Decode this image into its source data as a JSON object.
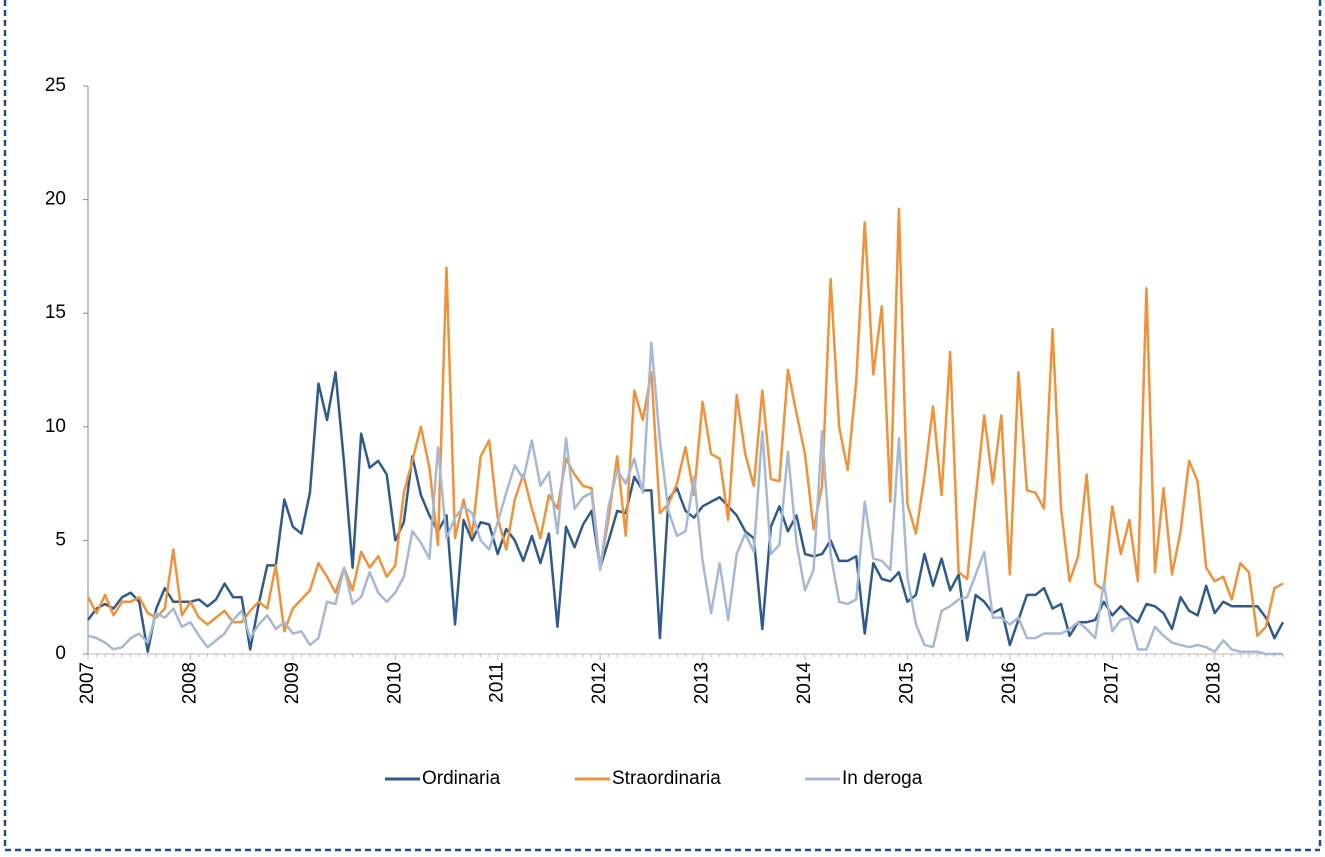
{
  "chart_data": {
    "type": "line",
    "categories": [
      "2007",
      null,
      null,
      null,
      null,
      null,
      null,
      null,
      null,
      null,
      null,
      null,
      "2008",
      null,
      null,
      null,
      null,
      null,
      null,
      null,
      null,
      null,
      null,
      null,
      "2009",
      null,
      null,
      null,
      null,
      null,
      null,
      null,
      null,
      null,
      null,
      null,
      "2010",
      null,
      null,
      null,
      null,
      null,
      null,
      null,
      null,
      null,
      null,
      null,
      "2011",
      null,
      null,
      null,
      null,
      null,
      null,
      null,
      null,
      null,
      null,
      null,
      "2012",
      null,
      null,
      null,
      null,
      null,
      null,
      null,
      null,
      null,
      null,
      null,
      "2013",
      null,
      null,
      null,
      null,
      null,
      null,
      null,
      null,
      null,
      null,
      null,
      "2014",
      null,
      null,
      null,
      null,
      null,
      null,
      null,
      null,
      null,
      null,
      null,
      "2015",
      null,
      null,
      null,
      null,
      null,
      null,
      null,
      null,
      null,
      null,
      null,
      "2016",
      null,
      null,
      null,
      null,
      null,
      null,
      null,
      null,
      null,
      null,
      null,
      "2017",
      null,
      null,
      null,
      null,
      null,
      null,
      null,
      null,
      null,
      null,
      null,
      "2018",
      null,
      null,
      null,
      null,
      null,
      null,
      null,
      null
    ],
    "series": [
      {
        "name": "Ordinaria",
        "color": "#2e5b8c",
        "values": [
          1.5,
          2.0,
          2.2,
          2.0,
          2.5,
          2.7,
          2.3,
          0.1,
          2.0,
          2.9,
          2.3,
          2.3,
          2.3,
          2.4,
          2.1,
          2.4,
          3.1,
          2.5,
          2.5,
          0.2,
          2.2,
          3.9,
          3.9,
          6.8,
          5.6,
          5.3,
          7.1,
          11.9,
          10.3,
          12.4,
          8.4,
          3.8,
          9.7,
          8.2,
          8.5,
          7.9,
          5.0,
          5.8,
          8.7,
          7.0,
          6.1,
          5.4,
          6.1,
          1.3,
          5.9,
          5.0,
          5.8,
          5.7,
          4.4,
          5.5,
          5.0,
          4.1,
          5.2,
          4.0,
          5.3,
          1.2,
          5.6,
          4.7,
          5.7,
          6.3,
          3.8,
          5.0,
          6.3,
          6.2,
          7.8,
          7.2,
          7.2,
          0.7,
          6.8,
          7.3,
          6.3,
          6.0,
          6.5,
          6.7,
          6.9,
          6.5,
          6.1,
          5.4,
          5.1,
          1.1,
          5.6,
          6.5,
          5.4,
          6.1,
          4.4,
          4.3,
          4.4,
          5.0,
          4.1,
          4.1,
          4.3,
          0.9,
          4.0,
          3.3,
          3.2,
          3.6,
          2.3,
          2.6,
          4.4,
          3.0,
          4.2,
          2.8,
          3.5,
          0.6,
          2.6,
          2.3,
          1.8,
          2.0,
          0.4,
          1.5,
          2.6,
          2.6,
          2.9,
          2.0,
          2.2,
          0.8,
          1.4,
          1.4,
          1.5,
          2.3,
          1.7,
          2.1,
          1.7,
          1.4,
          2.2,
          2.1,
          1.8,
          1.1,
          2.5,
          1.9,
          1.7,
          3.0,
          1.8,
          2.3,
          2.1,
          2.1,
          2.1,
          2.1,
          1.6,
          0.7,
          1.4
        ]
      },
      {
        "name": "Straordinaria",
        "color": "#f0923a",
        "values": [
          2.5,
          1.8,
          2.6,
          1.7,
          2.3,
          2.3,
          2.5,
          1.8,
          1.6,
          2.0,
          4.6,
          1.7,
          2.3,
          1.6,
          1.3,
          1.6,
          1.9,
          1.4,
          1.4,
          1.9,
          2.3,
          2.0,
          3.9,
          1.0,
          2.0,
          2.4,
          2.8,
          4.0,
          3.4,
          2.7,
          3.8,
          2.8,
          4.5,
          3.8,
          4.3,
          3.4,
          3.9,
          7.1,
          8.5,
          10.0,
          8.2,
          4.8,
          17.0,
          5.1,
          6.8,
          5.2,
          8.7,
          9.4,
          6.0,
          4.6,
          6.8,
          7.9,
          6.4,
          5.1,
          7.0,
          6.4,
          8.6,
          7.9,
          7.4,
          7.3,
          3.8,
          6.0,
          8.7,
          5.2,
          11.6,
          10.3,
          12.4,
          6.2,
          6.6,
          7.5,
          9.1,
          7.0,
          11.1,
          8.8,
          8.6,
          5.9,
          11.4,
          8.8,
          7.4,
          11.6,
          7.7,
          7.6,
          12.5,
          10.6,
          8.8,
          5.5,
          7.4,
          16.5,
          10.0,
          8.1,
          12.0,
          19.0,
          12.3,
          15.3,
          6.7,
          19.6,
          6.6,
          5.3,
          7.8,
          10.9,
          7.0,
          13.3,
          3.6,
          3.3,
          6.9,
          10.5,
          7.5,
          10.5,
          3.5,
          12.4,
          7.2,
          7.1,
          6.4,
          14.3,
          6.4,
          3.2,
          4.3,
          7.9,
          3.1,
          2.8,
          6.5,
          4.4,
          5.9,
          3.2,
          16.1,
          3.6,
          7.3,
          3.5,
          5.4,
          8.5,
          7.6,
          3.8,
          3.2,
          3.4,
          2.4,
          4.0,
          3.6,
          0.8,
          1.2,
          2.9,
          3.1
        ]
      },
      {
        "name": "In deroga",
        "color": "#a5b8d4",
        "values": [
          0.8,
          0.7,
          0.5,
          0.2,
          0.3,
          0.7,
          0.9,
          0.5,
          1.8,
          1.6,
          2.0,
          1.2,
          1.4,
          0.8,
          0.3,
          0.6,
          0.9,
          1.5,
          1.9,
          0.7,
          1.3,
          1.7,
          1.1,
          1.4,
          0.9,
          1.0,
          0.4,
          0.7,
          2.3,
          2.2,
          3.8,
          2.2,
          2.5,
          3.6,
          2.7,
          2.3,
          2.7,
          3.4,
          5.4,
          4.9,
          4.2,
          9.1,
          5.1,
          6.0,
          6.5,
          6.2,
          5.0,
          4.6,
          5.8,
          7.1,
          8.3,
          7.7,
          9.4,
          7.4,
          8.0,
          5.3,
          9.5,
          6.4,
          6.9,
          7.1,
          3.7,
          6.5,
          8.1,
          7.5,
          8.6,
          7.1,
          13.7,
          9.4,
          6.3,
          5.2,
          5.4,
          7.8,
          4.1,
          1.8,
          4.0,
          1.5,
          4.4,
          5.3,
          4.5,
          9.8,
          4.4,
          4.8,
          8.9,
          4.9,
          2.8,
          3.7,
          9.8,
          4.4,
          2.3,
          2.2,
          2.4,
          6.7,
          4.2,
          4.1,
          3.7,
          9.5,
          3.4,
          1.3,
          0.4,
          0.3,
          1.9,
          2.1,
          2.4,
          2.5,
          3.5,
          4.5,
          1.6,
          1.6,
          1.3,
          1.6,
          0.7,
          0.7,
          0.9,
          0.9,
          0.9,
          1.1,
          1.4,
          1.1,
          0.7,
          3.1,
          1.0,
          1.5,
          1.6,
          0.2,
          0.2,
          1.2,
          0.8,
          0.5,
          0.4,
          0.3,
          0.4,
          0.3,
          0.1,
          0.6,
          0.2,
          0.1,
          0.1,
          0.1,
          0.0,
          0.0,
          0.0
        ]
      }
    ],
    "ylim": [
      0,
      25
    ],
    "yticks": [
      0,
      5,
      10,
      15,
      20,
      25
    ],
    "grid": false,
    "legend": "bottom"
  }
}
